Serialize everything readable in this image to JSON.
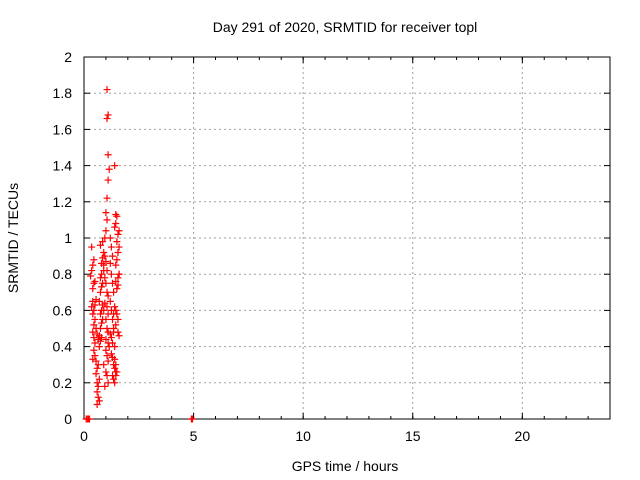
{
  "chart_data": {
    "type": "scatter",
    "title": "Day 291 of 2020, SRMTID for receiver topl",
    "xlabel": "GPS time / hours",
    "ylabel": "SRMTID / TECUs",
    "xlim": [
      0,
      24
    ],
    "ylim": [
      0,
      2
    ],
    "xticks": [
      0,
      5,
      10,
      15,
      20
    ],
    "yticks": [
      0,
      0.2,
      0.4,
      0.6,
      0.8,
      1,
      1.2,
      1.4,
      1.6,
      1.8,
      2
    ],
    "xtick_labels": [
      "0",
      "5",
      "10",
      "15",
      "20"
    ],
    "ytick_labels": [
      "0",
      "0.2",
      "0.4",
      "0.6",
      "0.8",
      "1",
      "1.2",
      "1.4",
      "1.6",
      "1.8",
      "2"
    ],
    "grid": true,
    "marker_color": "#ff0000",
    "series": [
      {
        "name": "SRMTID",
        "marker": "plus",
        "points": [
          [
            0.1,
            0.0
          ],
          [
            0.15,
            0.0
          ],
          [
            0.2,
            0.0
          ],
          [
            0.25,
            0.0
          ],
          [
            4.9,
            0.0
          ],
          [
            4.95,
            0.0
          ],
          [
            0.3,
            0.79
          ],
          [
            0.35,
            0.82
          ],
          [
            0.4,
            0.85
          ],
          [
            0.35,
            0.95
          ],
          [
            0.45,
            0.88
          ],
          [
            0.4,
            0.72
          ],
          [
            0.45,
            0.75
          ],
          [
            0.5,
            0.76
          ],
          [
            0.35,
            0.62
          ],
          [
            0.4,
            0.65
          ],
          [
            0.45,
            0.6
          ],
          [
            0.5,
            0.63
          ],
          [
            0.55,
            0.66
          ],
          [
            0.4,
            0.58
          ],
          [
            0.45,
            0.52
          ],
          [
            0.5,
            0.55
          ],
          [
            0.4,
            0.48
          ],
          [
            0.45,
            0.45
          ],
          [
            0.5,
            0.42
          ],
          [
            0.55,
            0.5
          ],
          [
            0.6,
            0.47
          ],
          [
            0.45,
            0.38
          ],
          [
            0.5,
            0.35
          ],
          [
            0.4,
            0.33
          ],
          [
            0.55,
            0.32
          ],
          [
            0.6,
            0.28
          ],
          [
            0.65,
            0.3
          ],
          [
            0.55,
            0.25
          ],
          [
            0.6,
            0.2
          ],
          [
            0.65,
            0.18
          ],
          [
            0.7,
            0.22
          ],
          [
            0.6,
            0.15
          ],
          [
            0.65,
            0.12
          ],
          [
            0.7,
            0.1
          ],
          [
            0.6,
            0.08
          ],
          [
            0.65,
            0.44
          ],
          [
            0.7,
            0.4
          ],
          [
            0.75,
            0.43
          ],
          [
            0.7,
            0.46
          ],
          [
            0.8,
            0.45
          ],
          [
            0.75,
            0.5
          ],
          [
            0.8,
            0.53
          ],
          [
            0.85,
            0.55
          ],
          [
            0.75,
            0.58
          ],
          [
            0.8,
            0.6
          ],
          [
            0.85,
            0.63
          ],
          [
            0.7,
            0.65
          ],
          [
            0.9,
            0.6
          ],
          [
            0.75,
            0.7
          ],
          [
            0.8,
            0.73
          ],
          [
            0.85,
            0.75
          ],
          [
            0.75,
            0.78
          ],
          [
            0.8,
            0.8
          ],
          [
            0.9,
            0.82
          ],
          [
            0.8,
            0.86
          ],
          [
            0.85,
            0.89
          ],
          [
            0.9,
            0.92
          ],
          [
            0.75,
            0.96
          ],
          [
            0.85,
            0.98
          ],
          [
            0.95,
            1.0
          ],
          [
            1.0,
            1.04
          ],
          [
            0.95,
            0.9
          ],
          [
            0.9,
            0.85
          ],
          [
            1.0,
            0.87
          ],
          [
            1.05,
            0.82
          ],
          [
            0.95,
            0.78
          ],
          [
            1.0,
            0.75
          ],
          [
            1.05,
            0.7
          ],
          [
            1.1,
            0.68
          ],
          [
            0.95,
            0.64
          ],
          [
            1.05,
            0.62
          ],
          [
            1.1,
            0.58
          ],
          [
            1.0,
            0.55
          ],
          [
            1.05,
            0.5
          ],
          [
            1.1,
            0.48
          ],
          [
            1.0,
            0.44
          ],
          [
            1.1,
            0.42
          ],
          [
            1.15,
            0.4
          ],
          [
            1.0,
            0.38
          ],
          [
            1.05,
            0.35
          ],
          [
            1.1,
            0.32
          ],
          [
            0.9,
            0.3
          ],
          [
            1.0,
            0.26
          ],
          [
            1.05,
            0.24
          ],
          [
            1.1,
            0.2
          ],
          [
            0.95,
            0.18
          ],
          [
            1.05,
            1.1
          ],
          [
            1.0,
            1.14
          ],
          [
            1.05,
            1.22
          ],
          [
            1.1,
            1.32
          ],
          [
            1.15,
            1.38
          ],
          [
            1.1,
            1.46
          ],
          [
            1.05,
            1.66
          ],
          [
            1.1,
            1.68
          ],
          [
            1.05,
            1.82
          ],
          [
            1.2,
            1.0
          ],
          [
            1.25,
            0.95
          ],
          [
            1.3,
            0.9
          ],
          [
            1.2,
            0.86
          ],
          [
            1.25,
            0.8
          ],
          [
            1.3,
            0.75
          ],
          [
            1.35,
            0.7
          ],
          [
            1.2,
            0.65
          ],
          [
            1.25,
            0.6
          ],
          [
            1.3,
            0.55
          ],
          [
            1.35,
            0.5
          ],
          [
            1.2,
            0.47
          ],
          [
            1.25,
            0.45
          ],
          [
            1.3,
            0.42
          ],
          [
            1.4,
            0.4
          ],
          [
            1.25,
            0.36
          ],
          [
            1.3,
            0.34
          ],
          [
            1.35,
            0.3
          ],
          [
            1.4,
            0.28
          ],
          [
            1.45,
            0.26
          ],
          [
            1.3,
            0.24
          ],
          [
            1.35,
            0.22
          ],
          [
            1.4,
            0.2
          ],
          [
            1.45,
            0.24
          ],
          [
            1.5,
            0.26
          ],
          [
            1.45,
            0.3
          ],
          [
            1.4,
            0.33
          ],
          [
            1.35,
            0.48
          ],
          [
            1.45,
            0.52
          ],
          [
            1.5,
            0.58
          ],
          [
            1.55,
            0.55
          ],
          [
            1.6,
            0.46
          ],
          [
            1.55,
            0.48
          ],
          [
            1.45,
            0.6
          ],
          [
            1.5,
            0.72
          ],
          [
            1.55,
            0.78
          ],
          [
            1.6,
            0.8
          ],
          [
            1.45,
            0.85
          ],
          [
            1.5,
            0.88
          ],
          [
            1.55,
            0.92
          ],
          [
            1.6,
            0.95
          ],
          [
            1.5,
            0.98
          ],
          [
            1.55,
            1.02
          ],
          [
            1.6,
            1.04
          ],
          [
            1.4,
            1.06
          ],
          [
            1.45,
            1.08
          ],
          [
            1.5,
            1.12
          ],
          [
            1.45,
            1.13
          ],
          [
            1.4,
            1.4
          ],
          [
            1.35,
            0.58
          ],
          [
            1.4,
            0.62
          ],
          [
            1.45,
            0.76
          ],
          [
            1.6,
            0.8
          ],
          [
            1.55,
            0.74
          ]
        ]
      }
    ]
  }
}
